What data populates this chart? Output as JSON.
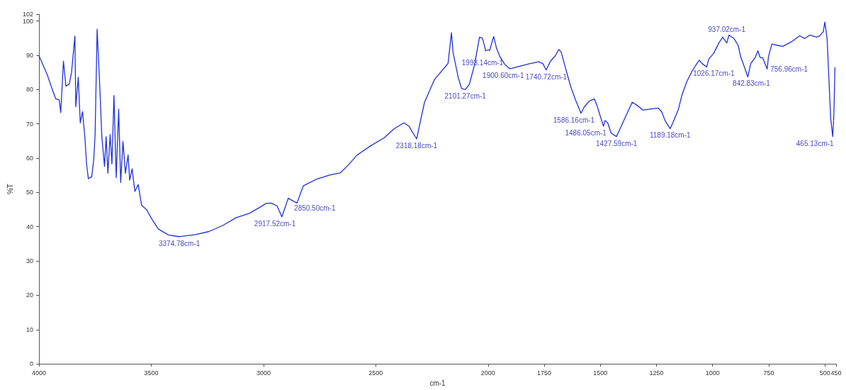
{
  "chart_data": {
    "type": "line",
    "xlabel": "cm-1",
    "ylabel": "%T",
    "xlim": [
      4000,
      450
    ],
    "xticks": [
      4000,
      3500,
      3000,
      2500,
      2000,
      1750,
      1500,
      1250,
      1000,
      750,
      500,
      450
    ],
    "ylim": [
      0,
      102
    ],
    "yticks": [
      0,
      10,
      20,
      30,
      40,
      50,
      60,
      70,
      80,
      90,
      100,
      102
    ],
    "grid": false,
    "marker": "none",
    "line_style": "solid",
    "x": [
      4000,
      3963,
      3940,
      3925,
      3910,
      3903,
      3891,
      3880,
      3865,
      3855,
      3840,
      3836,
      3825,
      3816,
      3806,
      3795,
      3788,
      3780,
      3765,
      3756,
      3750,
      3741,
      3731,
      3720,
      3708,
      3701,
      3693,
      3683,
      3675,
      3666,
      3656,
      3645,
      3636,
      3626,
      3615,
      3603,
      3596,
      3585,
      3573,
      3558,
      3543,
      3520,
      3498,
      3468,
      3423,
      3375,
      3303,
      3243,
      3183,
      3123,
      3063,
      3018,
      2988,
      2966,
      2940,
      2918,
      2890,
      2851,
      2823,
      2763,
      2703,
      2658,
      2628,
      2583,
      2523,
      2463,
      2420,
      2375,
      2352,
      2318,
      2283,
      2238,
      2186,
      2178,
      2163,
      2156,
      2133,
      2118,
      2101,
      2083,
      2061,
      2038,
      2025,
      2010,
      2000,
      1993,
      1975,
      1962,
      1947,
      1928,
      1910,
      1900,
      1850,
      1812,
      1775,
      1756,
      1741,
      1722,
      1700,
      1685,
      1674,
      1655,
      1632,
      1610,
      1586,
      1572,
      1550,
      1527,
      1516,
      1505,
      1486,
      1479,
      1467,
      1452,
      1428,
      1400,
      1377,
      1358,
      1340,
      1310,
      1280,
      1242,
      1227,
      1212,
      1189,
      1175,
      1152,
      1137,
      1115,
      1092,
      1070,
      1059,
      1047,
      1026,
      1017,
      995,
      972,
      955,
      937,
      927,
      905,
      886,
      875,
      860,
      843,
      830,
      811,
      798,
      788,
      777,
      757,
      751,
      736,
      710,
      687,
      650,
      612,
      590,
      567,
      537,
      522,
      507,
      500,
      490,
      474,
      465,
      460,
      455
    ],
    "series": [
      {
        "color": "#1f2fe0",
        "values": [
          89.9,
          84.3,
          79.9,
          77.3,
          77,
          73.3,
          88.3,
          81,
          81.6,
          85,
          95.6,
          75,
          83.6,
          70.3,
          73.6,
          65.6,
          58.3,
          54,
          54.6,
          59.6,
          66.9,
          97.6,
          83.6,
          66.3,
          57.6,
          66.3,
          55.6,
          66.9,
          58.3,
          78.3,
          54.3,
          74.3,
          52.9,
          64.9,
          55.6,
          60.9,
          53.6,
          56.9,
          50.3,
          52.3,
          46.3,
          44.9,
          42.3,
          39.3,
          37.6,
          37.1,
          37.7,
          38.6,
          40.3,
          42.6,
          43.9,
          45.6,
          46.8,
          46.9,
          46.1,
          42.9,
          48.3,
          46.9,
          51.9,
          53.9,
          55.1,
          55.7,
          57.6,
          60.9,
          63.6,
          65.9,
          68.5,
          70.3,
          69.3,
          65.6,
          76.3,
          83,
          87,
          87.7,
          96.6,
          90.9,
          83.6,
          80.3,
          80,
          81.6,
          87,
          95.3,
          95,
          91.3,
          91.6,
          91.4,
          95.5,
          92,
          89.6,
          87.6,
          86.4,
          86.1,
          87,
          87.6,
          88.1,
          87.6,
          85.7,
          88.3,
          89.9,
          91.7,
          90.9,
          86.3,
          80.9,
          76.9,
          73.1,
          74.9,
          76.6,
          77.3,
          75.6,
          73.3,
          69.3,
          71,
          70.3,
          67.3,
          66.3,
          70.3,
          73.6,
          76.3,
          75.6,
          74,
          74.3,
          74.6,
          73.6,
          71,
          68.6,
          70.6,
          74.3,
          78.3,
          82.3,
          85.3,
          87.6,
          88.6,
          87.6,
          86.6,
          88.9,
          90.6,
          93.6,
          95.3,
          93.6,
          95.9,
          94.9,
          92.9,
          89.6,
          86.9,
          83.7,
          87.6,
          89.3,
          91.3,
          89.3,
          89.3,
          86,
          89.6,
          93.3,
          92.9,
          92.6,
          93.9,
          95.7,
          94.9,
          95.9,
          95.3,
          95.7,
          96.9,
          99.7,
          94.9,
          71.6,
          66.3,
          72.3,
          86.4
        ]
      }
    ],
    "annotations": [
      {
        "text": "3374.78cm-1",
        "x": 3374.78,
        "y": 37.1
      },
      {
        "text": "2917.52cm-1",
        "x": 2917.52,
        "y": 42.9
      },
      {
        "text": "2850.50cm-1",
        "x": 2850.5,
        "y": 46.9
      },
      {
        "text": "2318.18cm-1",
        "x": 2318.18,
        "y": 65.6
      },
      {
        "text": "2101.27cm-1",
        "x": 2101.27,
        "y": 80
      },
      {
        "text": "1993.14cm-1",
        "x": 1993.14,
        "y": 91.4
      },
      {
        "text": "1900.60cm-1",
        "x": 1900.6,
        "y": 86.1
      },
      {
        "text": "1740.72cm-1",
        "x": 1740.72,
        "y": 85.7
      },
      {
        "text": "1586.16cm-1",
        "x": 1586.16,
        "y": 73.1
      },
      {
        "text": "1486.05cm-1",
        "x": 1486.05,
        "y": 69.3
      },
      {
        "text": "1427.59cm-1",
        "x": 1427.59,
        "y": 66.3
      },
      {
        "text": "1189.18cm-1",
        "x": 1189.18,
        "y": 68.6
      },
      {
        "text": "1026.17cm-1",
        "x": 1026.17,
        "y": 86.6
      },
      {
        "text": "937.02cm-1",
        "x": 937.02,
        "y": 93.6
      },
      {
        "text": "842.83cm-1",
        "x": 842.83,
        "y": 83.7
      },
      {
        "text": "756.96cm-1",
        "x": 756.96,
        "y": 86
      },
      {
        "text": "465.13cm-1",
        "x": 465.13,
        "y": 66.3
      }
    ]
  }
}
